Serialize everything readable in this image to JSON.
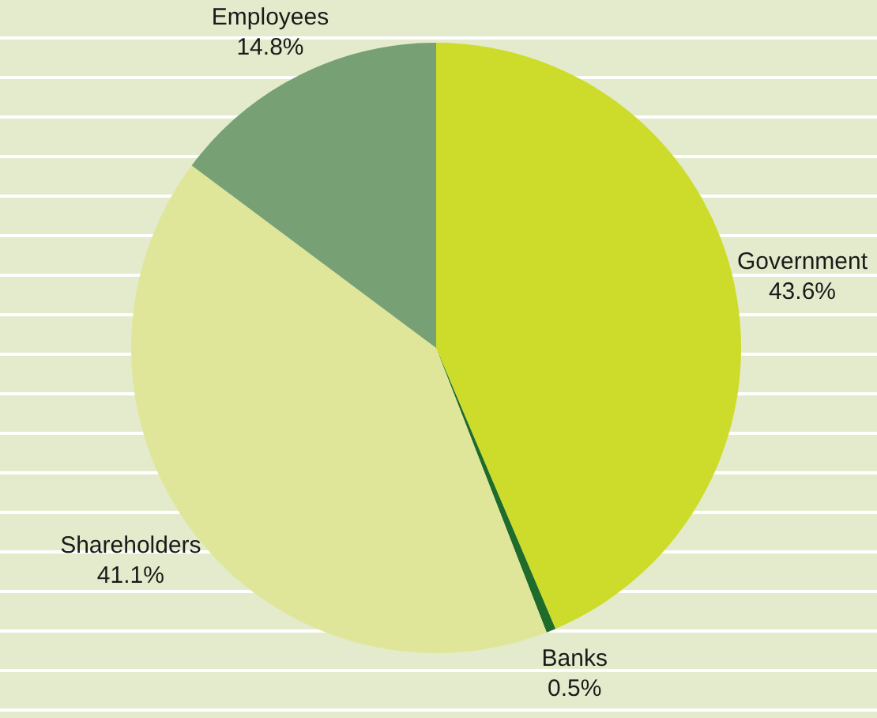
{
  "chart_data": {
    "type": "pie",
    "categories": [
      "Government",
      "Banks",
      "Shareholders",
      "Employees"
    ],
    "values": [
      43.6,
      0.5,
      41.1,
      14.8
    ],
    "colors": [
      "#cddc2a",
      "#1e6b2a",
      "#dfe69a",
      "#77a075"
    ],
    "value_labels": [
      "43.6%",
      "0.5%",
      "41.1%",
      "14.8%"
    ],
    "legend": false
  }
}
